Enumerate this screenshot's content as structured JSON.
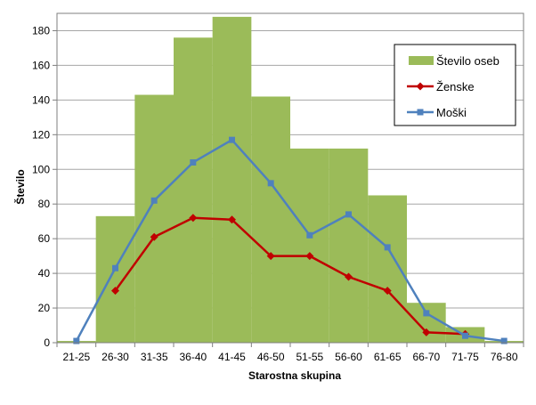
{
  "chart_data": {
    "type": "bar",
    "categories": [
      "21-25",
      "26-30",
      "31-35",
      "36-40",
      "41-45",
      "46-50",
      "51-55",
      "56-60",
      "61-65",
      "66-70",
      "71-75",
      "76-80"
    ],
    "xlabel": "Starostna skupina",
    "ylabel": "Število",
    "ylim": [
      0,
      190
    ],
    "yticks": [
      0,
      20,
      40,
      60,
      80,
      100,
      120,
      140,
      160,
      180
    ],
    "grid": true,
    "legend_position": "top-right",
    "series": [
      {
        "name": "Število oseb",
        "type": "bar",
        "color": "#9bbb59",
        "values": [
          1,
          73,
          143,
          176,
          188,
          142,
          112,
          112,
          85,
          23,
          9,
          1
        ]
      },
      {
        "name": "Ženske",
        "type": "line",
        "color": "#c00000",
        "marker": "diamond",
        "values": [
          null,
          30,
          61,
          72,
          71,
          50,
          50,
          38,
          30,
          6,
          5,
          null
        ]
      },
      {
        "name": "Moški",
        "type": "line",
        "color": "#4f81bd",
        "marker": "square",
        "values": [
          1,
          43,
          82,
          104,
          117,
          92,
          62,
          74,
          55,
          17,
          4,
          1
        ]
      }
    ]
  }
}
